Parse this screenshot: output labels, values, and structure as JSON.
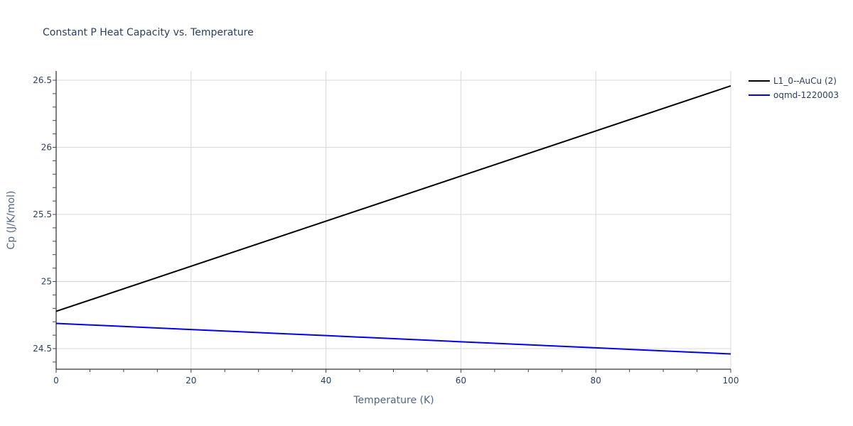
{
  "chart_data": {
    "type": "line",
    "title": "Constant P Heat Capacity vs. Temperature",
    "xlabel": "Temperature (K)",
    "ylabel": "Cp (J/K/mol)",
    "xlim": [
      0,
      100
    ],
    "ylim": [
      24.35,
      26.57
    ],
    "x_ticks": [
      0,
      20,
      40,
      60,
      80,
      100
    ],
    "x_tick_labels": [
      "0",
      "20",
      "40",
      "60",
      "80",
      "100"
    ],
    "x_minor_step": 5,
    "y_ticks": [
      24.5,
      25,
      25.5,
      26,
      26.5
    ],
    "y_tick_labels": [
      "24.5",
      "25",
      "25.5",
      "26",
      "26.5"
    ],
    "y_minor_step": 0.1,
    "grid": true,
    "legend_position": "right-top",
    "series": [
      {
        "name": "L1_0--AuCu (2)",
        "color": "#000000",
        "x": [
          0,
          20,
          40,
          60,
          80,
          100
        ],
        "y": [
          24.778,
          25.114,
          25.45,
          25.786,
          26.122,
          26.458
        ]
      },
      {
        "name": "oqmd-1220003",
        "color": "#0000ee",
        "x": [
          0,
          20,
          40,
          60,
          80,
          100
        ],
        "y": [
          24.688,
          24.642,
          24.597,
          24.551,
          24.506,
          24.46
        ]
      }
    ]
  }
}
